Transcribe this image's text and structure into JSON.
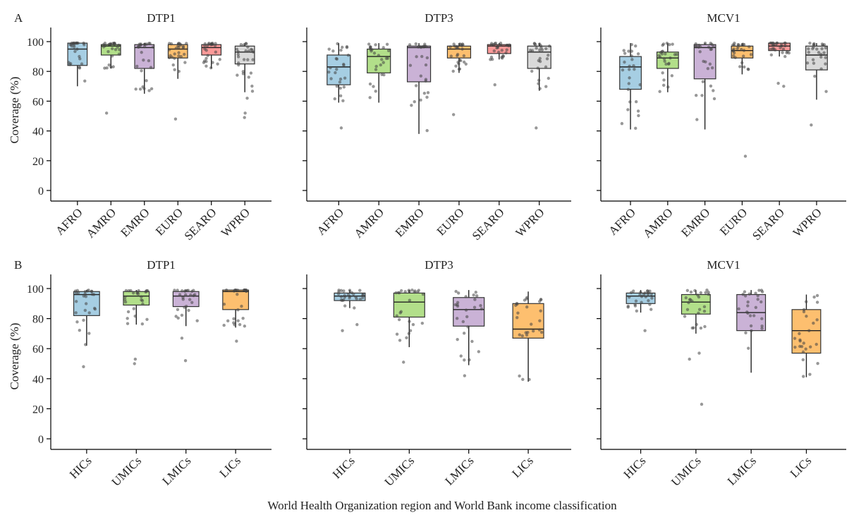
{
  "figure": {
    "xlabel": "World Health Organization region and World Bank income classification",
    "ylabel": "Coverage (%)"
  },
  "chart_data": [
    {
      "panel_label": "A",
      "title": "DTP1",
      "type": "box",
      "categories": [
        "AFRO",
        "AMRO",
        "EMRO",
        "EURO",
        "SEARO",
        "WPRO"
      ],
      "colors": [
        "#a6cee3",
        "#b2df8a",
        "#cab2d6",
        "#fdbf6f",
        "#fb9a99",
        "#d9d9d9"
      ],
      "ylim": [
        0,
        100
      ],
      "yticks": [
        0,
        20,
        40,
        60,
        80,
        100
      ],
      "boxes": [
        {
          "q1": 84,
          "median": 95,
          "q3": 99,
          "whisker_low": 70,
          "whisker_high": 99
        },
        {
          "q1": 91,
          "median": 97,
          "q3": 98,
          "whisker_low": 82,
          "whisker_high": 99
        },
        {
          "q1": 82,
          "median": 96,
          "q3": 98,
          "whisker_low": 65,
          "whisker_high": 99
        },
        {
          "q1": 89,
          "median": 95,
          "q3": 98,
          "whisker_low": 75,
          "whisker_high": 99
        },
        {
          "q1": 91,
          "median": 96,
          "q3": 98,
          "whisker_low": 82,
          "whisker_high": 99
        },
        {
          "q1": 85,
          "median": 93,
          "q3": 97,
          "whisker_low": 66,
          "whisker_high": 99
        }
      ],
      "outliers": [
        [],
        [
          52
        ],
        [],
        [
          48
        ],
        [],
        [
          49,
          52,
          62
        ]
      ]
    },
    {
      "panel_label": "",
      "title": "DTP3",
      "type": "box",
      "categories": [
        "AFRO",
        "AMRO",
        "EMRO",
        "EURO",
        "SEARO",
        "WPRO"
      ],
      "colors": [
        "#a6cee3",
        "#b2df8a",
        "#cab2d6",
        "#fdbf6f",
        "#fb9a99",
        "#d9d9d9"
      ],
      "ylim": [
        0,
        100
      ],
      "yticks": [
        0,
        20,
        40,
        60,
        80,
        100
      ],
      "boxes": [
        {
          "q1": 71,
          "median": 83,
          "q3": 91,
          "whisker_low": 59,
          "whisker_high": 99
        },
        {
          "q1": 79,
          "median": 90,
          "q3": 95,
          "whisker_low": 59,
          "whisker_high": 99
        },
        {
          "q1": 73,
          "median": 96,
          "q3": 97,
          "whisker_low": 38,
          "whisker_high": 99
        },
        {
          "q1": 89,
          "median": 95,
          "q3": 97,
          "whisker_low": 79,
          "whisker_high": 99
        },
        {
          "q1": 92,
          "median": 97,
          "q3": 98,
          "whisker_low": 88,
          "whisker_high": 99
        },
        {
          "q1": 82,
          "median": 93,
          "q3": 97,
          "whisker_low": 67,
          "whisker_high": 99
        }
      ],
      "outliers": [
        [
          42
        ],
        [],
        [],
        [
          51
        ],
        [
          71
        ],
        [
          42
        ]
      ]
    },
    {
      "panel_label": "",
      "title": "MCV1",
      "type": "box",
      "categories": [
        "AFRO",
        "AMRO",
        "EMRO",
        "EURO",
        "SEARO",
        "WPRO"
      ],
      "colors": [
        "#a6cee3",
        "#b2df8a",
        "#cab2d6",
        "#fdbf6f",
        "#fb9a99",
        "#d9d9d9"
      ],
      "ylim": [
        0,
        100
      ],
      "yticks": [
        0,
        20,
        40,
        60,
        80,
        100
      ],
      "boxes": [
        {
          "q1": 68,
          "median": 83,
          "q3": 90,
          "whisker_low": 41,
          "whisker_high": 99
        },
        {
          "q1": 82,
          "median": 89,
          "q3": 93,
          "whisker_low": 66,
          "whisker_high": 99
        },
        {
          "q1": 75,
          "median": 96,
          "q3": 98,
          "whisker_low": 41,
          "whisker_high": 99
        },
        {
          "q1": 89,
          "median": 94,
          "q3": 97,
          "whisker_low": 78,
          "whisker_high": 99
        },
        {
          "q1": 94,
          "median": 97,
          "q3": 99,
          "whisker_low": 90,
          "whisker_high": 99
        },
        {
          "q1": 81,
          "median": 91,
          "q3": 97,
          "whisker_low": 61,
          "whisker_high": 99
        }
      ],
      "outliers": [
        [],
        [],
        [],
        [
          23
        ],
        [
          70,
          72
        ],
        [
          44
        ]
      ]
    },
    {
      "panel_label": "B",
      "title": "DTP1",
      "type": "box",
      "categories": [
        "HICs",
        "UMICs",
        "LMICs",
        "LICs"
      ],
      "colors": [
        "#a6cee3",
        "#b2df8a",
        "#cab2d6",
        "#fdbf6f"
      ],
      "ylim": [
        0,
        100
      ],
      "yticks": [
        0,
        20,
        40,
        60,
        80,
        100
      ],
      "boxes": [
        {
          "q1": 82,
          "median": 96,
          "q3": 98,
          "whisker_low": 62,
          "whisker_high": 99
        },
        {
          "q1": 89,
          "median": 95,
          "q3": 98,
          "whisker_low": 76,
          "whisker_high": 99
        },
        {
          "q1": 88,
          "median": 95,
          "q3": 98,
          "whisker_low": 75,
          "whisker_high": 99
        },
        {
          "q1": 86,
          "median": 98,
          "q3": 99,
          "whisker_low": 74,
          "whisker_high": 99
        }
      ],
      "outliers": [
        [
          48
        ],
        [
          50,
          53
        ],
        [
          52,
          67
        ],
        [
          65
        ]
      ]
    },
    {
      "panel_label": "",
      "title": "DTP3",
      "type": "box",
      "categories": [
        "HICs",
        "UMICs",
        "LMICs",
        "LICs"
      ],
      "colors": [
        "#a6cee3",
        "#b2df8a",
        "#cab2d6",
        "#fdbf6f"
      ],
      "ylim": [
        0,
        100
      ],
      "yticks": [
        0,
        20,
        40,
        60,
        80,
        100
      ],
      "boxes": [
        {
          "q1": 92,
          "median": 95,
          "q3": 97,
          "whisker_low": 87,
          "whisker_high": 99
        },
        {
          "q1": 81,
          "median": 91,
          "q3": 97,
          "whisker_low": 61,
          "whisker_high": 99
        },
        {
          "q1": 75,
          "median": 86,
          "q3": 94,
          "whisker_low": 49,
          "whisker_high": 99
        },
        {
          "q1": 67,
          "median": 73,
          "q3": 90,
          "whisker_low": 38,
          "whisker_high": 98
        }
      ],
      "outliers": [
        [
          72,
          76
        ],
        [
          51
        ],
        [
          42
        ],
        []
      ]
    },
    {
      "panel_label": "",
      "title": "MCV1",
      "type": "box",
      "categories": [
        "HICs",
        "UMICs",
        "LMICs",
        "LICs"
      ],
      "colors": [
        "#a6cee3",
        "#b2df8a",
        "#cab2d6",
        "#fdbf6f"
      ],
      "ylim": [
        0,
        100
      ],
      "yticks": [
        0,
        20,
        40,
        60,
        80,
        100
      ],
      "boxes": [
        {
          "q1": 90,
          "median": 95,
          "q3": 97,
          "whisker_low": 84,
          "whisker_high": 99
        },
        {
          "q1": 83,
          "median": 91,
          "q3": 96,
          "whisker_low": 70,
          "whisker_high": 99
        },
        {
          "q1": 72,
          "median": 84,
          "q3": 96,
          "whisker_low": 44,
          "whisker_high": 99
        },
        {
          "q1": 57,
          "median": 72,
          "q3": 86,
          "whisker_low": 41,
          "whisker_high": 96
        }
      ],
      "outliers": [
        [
          72
        ],
        [
          23,
          53,
          57
        ],
        [],
        []
      ]
    }
  ]
}
